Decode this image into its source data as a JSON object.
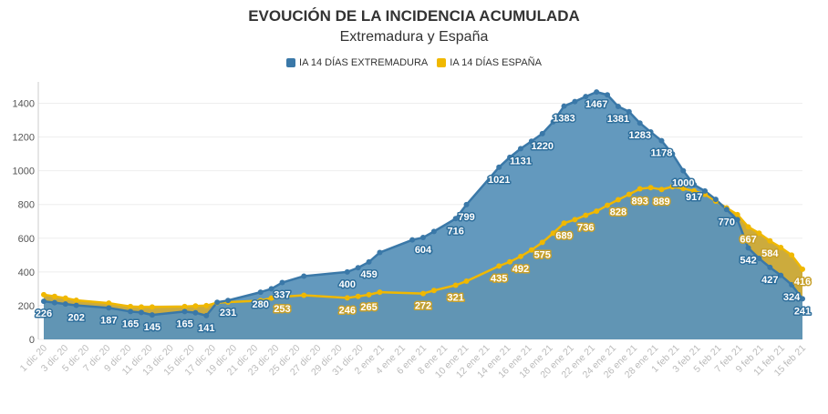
{
  "chart_data": {
    "type": "area",
    "title": "EVOUCIÓN DE LA INCIDENCIA ACUMULADA",
    "subtitle": "Extremadura y España",
    "ylim": [
      0,
      1500
    ],
    "yticks": [
      0,
      200,
      400,
      600,
      800,
      1000,
      1200,
      1400
    ],
    "x_ticks": [
      "1 dic 20",
      "3 dic 20",
      "5 dic 20",
      "7 dic 20",
      "9 dic 20",
      "11 dic 20",
      "13 dic 20",
      "15 dic 20",
      "17 dic 20",
      "19 dic 20",
      "21 dic 20",
      "23 dic 20",
      "25 dic 20",
      "27 dic 20",
      "29 dic 20",
      "31 dic 20",
      "2 ene 21",
      "4 ene 21",
      "6 ene 21",
      "8 ene 21",
      "10 ene 21",
      "12 ene 21",
      "14 ene 21",
      "16 ene 21",
      "18 ene 21",
      "20 ene 21",
      "22 ene 21",
      "24 ene 21",
      "26 ene 21",
      "28 ene 21",
      "1 feb 21",
      "3 feb 21",
      "5 feb 21",
      "7 feb 21",
      "9 feb 21",
      "11 feb 21",
      "15 feb 21"
    ],
    "series": [
      {
        "name": "IA 14 DÍAS EXTREMADURA",
        "color": "#3a78a8",
        "fill": "#5b93ba",
        "points": [
          [
            0,
            226
          ],
          [
            1,
            218
          ],
          [
            2,
            210
          ],
          [
            3,
            202
          ],
          [
            6,
            187
          ],
          [
            8,
            165
          ],
          [
            9,
            160
          ],
          [
            10,
            145
          ],
          [
            13,
            165
          ],
          [
            14,
            158
          ],
          [
            15,
            141
          ],
          [
            16,
            220
          ],
          [
            17,
            231
          ],
          [
            20,
            280
          ],
          [
            21,
            300
          ],
          [
            22,
            337
          ],
          [
            24,
            375
          ],
          [
            28,
            400
          ],
          [
            29,
            425
          ],
          [
            30,
            459
          ],
          [
            31,
            515
          ],
          [
            34,
            590
          ],
          [
            35,
            604
          ],
          [
            36,
            640
          ],
          [
            38,
            716
          ],
          [
            39,
            799
          ],
          [
            42,
            1021
          ],
          [
            43,
            1080
          ],
          [
            44,
            1131
          ],
          [
            45,
            1175
          ],
          [
            46,
            1220
          ],
          [
            47,
            1290
          ],
          [
            48,
            1383
          ],
          [
            49,
            1410
          ],
          [
            50,
            1440
          ],
          [
            51,
            1467
          ],
          [
            52,
            1450
          ],
          [
            53,
            1381
          ],
          [
            54,
            1350
          ],
          [
            55,
            1283
          ],
          [
            56,
            1230
          ],
          [
            57,
            1178
          ],
          [
            58,
            1100
          ],
          [
            59,
            1000
          ],
          [
            60,
            917
          ],
          [
            61,
            880
          ],
          [
            62,
            830
          ],
          [
            63,
            770
          ],
          [
            64,
            710
          ],
          [
            65,
            542
          ],
          [
            66,
            480
          ],
          [
            67,
            427
          ],
          [
            68,
            380
          ],
          [
            69,
            324
          ],
          [
            70,
            241
          ]
        ],
        "labeled": [
          [
            0,
            "226"
          ],
          [
            3,
            "202"
          ],
          [
            6,
            "187"
          ],
          [
            8,
            "165"
          ],
          [
            10,
            "145"
          ],
          [
            13,
            "165"
          ],
          [
            15,
            "141"
          ],
          [
            17,
            "231"
          ],
          [
            20,
            "280"
          ],
          [
            22,
            "337"
          ],
          [
            28,
            "400"
          ],
          [
            30,
            "459"
          ],
          [
            35,
            "604"
          ],
          [
            38,
            "716"
          ],
          [
            39,
            "799"
          ],
          [
            42,
            "1021"
          ],
          [
            44,
            "1131"
          ],
          [
            46,
            "1220"
          ],
          [
            48,
            "1383"
          ],
          [
            51,
            "1467"
          ],
          [
            53,
            "1381"
          ],
          [
            55,
            "1283"
          ],
          [
            57,
            "1178"
          ],
          [
            59,
            "1000"
          ],
          [
            60,
            "917"
          ],
          [
            63,
            "770"
          ],
          [
            65,
            "542"
          ],
          [
            67,
            "427"
          ],
          [
            69,
            "324"
          ],
          [
            70,
            "241"
          ]
        ]
      },
      {
        "name": "IA 14 DÍAS ESPAÑA",
        "color": "#f0b800",
        "fill": "#c9a633",
        "points": [
          [
            0,
            265
          ],
          [
            1,
            255
          ],
          [
            2,
            245
          ],
          [
            3,
            232
          ],
          [
            6,
            215
          ],
          [
            8,
            195
          ],
          [
            9,
            192
          ],
          [
            10,
            192
          ],
          [
            13,
            195
          ],
          [
            14,
            198
          ],
          [
            15,
            200
          ],
          [
            16,
            218
          ],
          [
            17,
            221
          ],
          [
            20,
            230
          ],
          [
            21,
            245
          ],
          [
            22,
            253
          ],
          [
            24,
            262
          ],
          [
            28,
            246
          ],
          [
            29,
            255
          ],
          [
            30,
            265
          ],
          [
            31,
            280
          ],
          [
            35,
            272
          ],
          [
            36,
            290
          ],
          [
            38,
            321
          ],
          [
            39,
            345
          ],
          [
            42,
            435
          ],
          [
            43,
            460
          ],
          [
            44,
            492
          ],
          [
            45,
            530
          ],
          [
            46,
            575
          ],
          [
            47,
            630
          ],
          [
            48,
            689
          ],
          [
            49,
            710
          ],
          [
            50,
            736
          ],
          [
            51,
            760
          ],
          [
            52,
            795
          ],
          [
            53,
            828
          ],
          [
            54,
            860
          ],
          [
            55,
            893
          ],
          [
            56,
            900
          ],
          [
            57,
            889
          ],
          [
            58,
            905
          ],
          [
            59,
            895
          ],
          [
            60,
            880
          ],
          [
            61,
            860
          ],
          [
            62,
            820
          ],
          [
            63,
            780
          ],
          [
            64,
            740
          ],
          [
            65,
            667
          ],
          [
            66,
            630
          ],
          [
            67,
            584
          ],
          [
            68,
            545
          ],
          [
            69,
            500
          ],
          [
            70,
            416
          ]
        ],
        "labeled": [
          [
            22,
            "253"
          ],
          [
            28,
            "246"
          ],
          [
            30,
            "265"
          ],
          [
            35,
            "272"
          ],
          [
            38,
            "321"
          ],
          [
            42,
            "435"
          ],
          [
            44,
            "492"
          ],
          [
            46,
            "575"
          ],
          [
            48,
            "689"
          ],
          [
            50,
            "736"
          ],
          [
            53,
            "828"
          ],
          [
            55,
            "893"
          ],
          [
            57,
            "889"
          ],
          [
            65,
            "667"
          ],
          [
            67,
            "584"
          ],
          [
            70,
            "416"
          ]
        ]
      }
    ]
  }
}
